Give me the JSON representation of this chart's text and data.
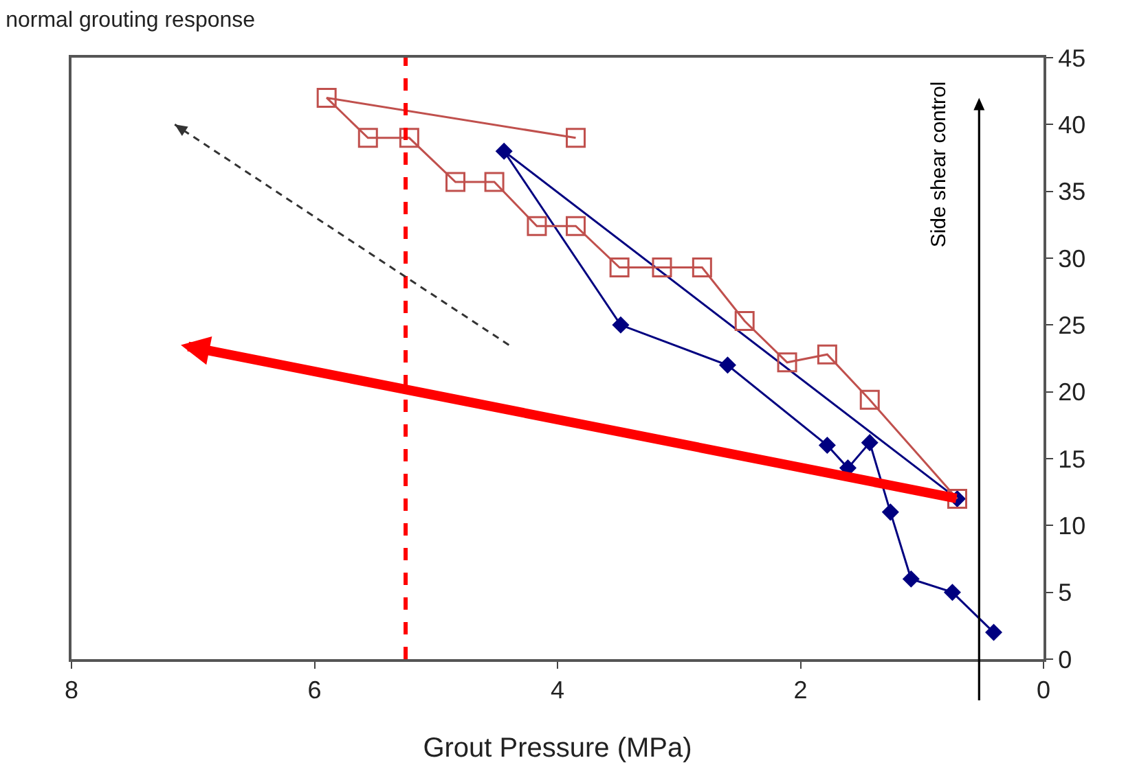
{
  "chart_data": {
    "type": "line",
    "title": "normal grouting response",
    "xlabel": "Grout Pressure (MPa)",
    "annotations": [
      "Side shear control"
    ],
    "xlim": [
      8,
      0
    ],
    "xticks": [
      0,
      2,
      4,
      6,
      8
    ],
    "ylim": [
      0,
      45
    ],
    "yticks": [
      0,
      5,
      10,
      15,
      20,
      25,
      30,
      35,
      40,
      45
    ],
    "grid": false,
    "ref_lines": [
      {
        "axis": "x",
        "value": 5.25,
        "color": "#ff0000",
        "line_style": "dashed"
      }
    ],
    "series": [
      {
        "color": "#000080",
        "marker": "diamond",
        "x": [
          0.71,
          4.44,
          3.48,
          2.6,
          1.78,
          1.61,
          1.43,
          1.26,
          1.09,
          0.75,
          0.41
        ],
        "values": [
          12,
          38,
          25,
          22,
          16,
          14.3,
          16.2,
          11,
          6,
          5,
          2
        ]
      },
      {
        "color": "#c0504d",
        "marker": "square",
        "x": [
          3.85,
          5.9,
          5.56,
          5.22,
          4.84,
          4.52,
          4.17,
          3.85,
          3.49,
          3.14,
          2.81,
          2.46,
          2.11,
          1.78,
          1.43,
          0.71
        ],
        "values": [
          39,
          42,
          39,
          39,
          35.7,
          35.7,
          32.4,
          32.4,
          29.3,
          29.3,
          29.3,
          25.3,
          22.2,
          22.8,
          19.4,
          12
        ]
      }
    ]
  }
}
